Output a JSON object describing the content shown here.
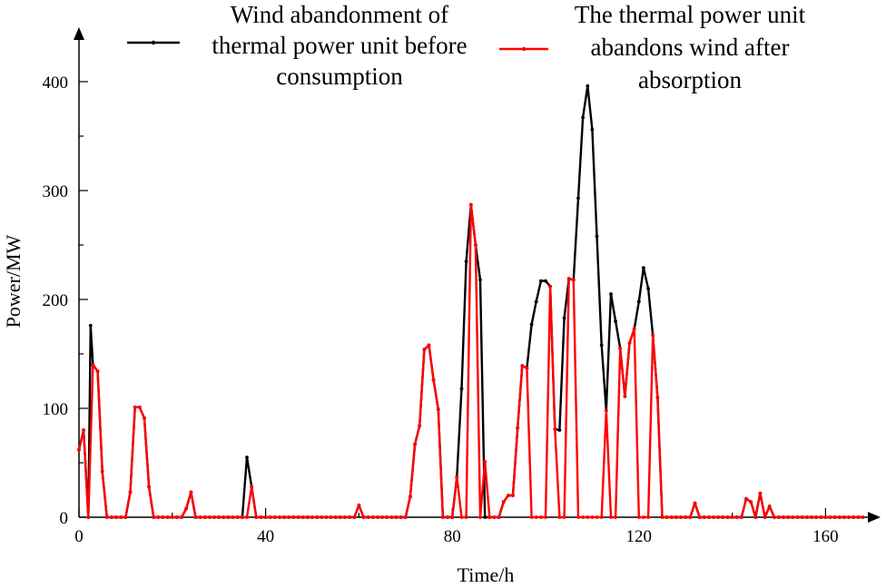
{
  "chart_data": {
    "type": "line",
    "xlabel": "Time/h",
    "ylabel": "Power/MW",
    "xlim": [
      0,
      168
    ],
    "ylim": [
      0,
      400
    ],
    "xticks": [
      0,
      40,
      80,
      120,
      160
    ],
    "yticks": [
      0,
      100,
      200,
      300,
      400
    ],
    "legend_position": "top",
    "grid": false,
    "series": [
      {
        "name": "Wind abandonment of thermal power unit before consumption",
        "legend_lines": [
          "Wind abandonment of",
          "thermal power unit before",
          "consumption"
        ],
        "color": "#000000",
        "points": [
          [
            0,
            62
          ],
          [
            1,
            80
          ],
          [
            2,
            0
          ],
          [
            2.5,
            176
          ],
          [
            3,
            140
          ],
          [
            4,
            134
          ],
          [
            5,
            42
          ],
          [
            6,
            0
          ],
          [
            7,
            0
          ],
          [
            8,
            0
          ],
          [
            9,
            0
          ],
          [
            10,
            0
          ],
          [
            11,
            23
          ],
          [
            12,
            101
          ],
          [
            13,
            101
          ],
          [
            14,
            91
          ],
          [
            15,
            28
          ],
          [
            16,
            0
          ],
          [
            17,
            0
          ],
          [
            18,
            0
          ],
          [
            19,
            0
          ],
          [
            20,
            0
          ],
          [
            21,
            0
          ],
          [
            22,
            0
          ],
          [
            23,
            8
          ],
          [
            24,
            23
          ],
          [
            25,
            0
          ],
          [
            26,
            0
          ],
          [
            27,
            0
          ],
          [
            28,
            0
          ],
          [
            29,
            0
          ],
          [
            30,
            0
          ],
          [
            31,
            0
          ],
          [
            32,
            0
          ],
          [
            33,
            0
          ],
          [
            34,
            0
          ],
          [
            35,
            0
          ],
          [
            36,
            55
          ],
          [
            37,
            28
          ],
          [
            38,
            0
          ],
          [
            39,
            0
          ],
          [
            40,
            0
          ],
          [
            41,
            0
          ],
          [
            42,
            0
          ],
          [
            43,
            0
          ],
          [
            44,
            0
          ],
          [
            45,
            0
          ],
          [
            46,
            0
          ],
          [
            47,
            0
          ],
          [
            48,
            0
          ],
          [
            49,
            0
          ],
          [
            50,
            0
          ],
          [
            51,
            0
          ],
          [
            52,
            0
          ],
          [
            53,
            0
          ],
          [
            54,
            0
          ],
          [
            55,
            0
          ],
          [
            56,
            0
          ],
          [
            57,
            0
          ],
          [
            58,
            0
          ],
          [
            59,
            0
          ],
          [
            60,
            11
          ],
          [
            61,
            0
          ],
          [
            62,
            0
          ],
          [
            63,
            0
          ],
          [
            64,
            0
          ],
          [
            65,
            0
          ],
          [
            66,
            0
          ],
          [
            67,
            0
          ],
          [
            68,
            0
          ],
          [
            69,
            0
          ],
          [
            70,
            0
          ],
          [
            71,
            19
          ],
          [
            72,
            67
          ],
          [
            73,
            84
          ],
          [
            74,
            154
          ],
          [
            75,
            158
          ],
          [
            76,
            126
          ],
          [
            77,
            99
          ],
          [
            78,
            0
          ],
          [
            79,
            0
          ],
          [
            80,
            0
          ],
          [
            81,
            37
          ],
          [
            82,
            118
          ],
          [
            83,
            235
          ],
          [
            84,
            287
          ],
          [
            85,
            250
          ],
          [
            86,
            218
          ],
          [
            87,
            0
          ],
          [
            88,
            0
          ],
          [
            89,
            0
          ],
          [
            90,
            0
          ],
          [
            91,
            14
          ],
          [
            92,
            20
          ],
          [
            93,
            20
          ],
          [
            94,
            82
          ],
          [
            95,
            139
          ],
          [
            96,
            137
          ],
          [
            97,
            177
          ],
          [
            98,
            198
          ],
          [
            99,
            217
          ],
          [
            100,
            217
          ],
          [
            101,
            212
          ],
          [
            102,
            81
          ],
          [
            103,
            80
          ],
          [
            104,
            183
          ],
          [
            105,
            219
          ],
          [
            106,
            218
          ],
          [
            107,
            293
          ],
          [
            108,
            367
          ],
          [
            109,
            396
          ],
          [
            110,
            356
          ],
          [
            111,
            258
          ],
          [
            112,
            158
          ],
          [
            113,
            98
          ],
          [
            114,
            205
          ],
          [
            115,
            180
          ],
          [
            116,
            155
          ],
          [
            117,
            111
          ],
          [
            118,
            160
          ],
          [
            119,
            173
          ],
          [
            120,
            198
          ],
          [
            121,
            229
          ],
          [
            122,
            210
          ],
          [
            123,
            167
          ],
          [
            124,
            110
          ],
          [
            125,
            0
          ],
          [
            126,
            0
          ],
          [
            127,
            0
          ],
          [
            128,
            0
          ],
          [
            129,
            0
          ],
          [
            130,
            0
          ],
          [
            131,
            0
          ],
          [
            132,
            13
          ],
          [
            133,
            0
          ],
          [
            134,
            0
          ],
          [
            135,
            0
          ],
          [
            136,
            0
          ],
          [
            137,
            0
          ],
          [
            138,
            0
          ],
          [
            139,
            0
          ],
          [
            140,
            0
          ],
          [
            141,
            0
          ],
          [
            142,
            0
          ],
          [
            143,
            17
          ],
          [
            144,
            14
          ],
          [
            145,
            0
          ],
          [
            146,
            22
          ],
          [
            147,
            0
          ],
          [
            148,
            10
          ],
          [
            149,
            0
          ],
          [
            150,
            0
          ],
          [
            151,
            0
          ],
          [
            152,
            0
          ],
          [
            153,
            0
          ],
          [
            154,
            0
          ],
          [
            155,
            0
          ],
          [
            156,
            0
          ],
          [
            157,
            0
          ],
          [
            158,
            0
          ],
          [
            159,
            0
          ],
          [
            160,
            0
          ],
          [
            161,
            0
          ],
          [
            162,
            0
          ],
          [
            163,
            0
          ],
          [
            164,
            0
          ],
          [
            165,
            0
          ],
          [
            166,
            0
          ],
          [
            167,
            0
          ],
          [
            168,
            0
          ]
        ]
      },
      {
        "name": "The thermal power unit abandons wind after absorption",
        "legend_lines": [
          "The thermal power unit",
          "abandons wind after",
          "absorption"
        ],
        "color": "#ff0000",
        "points": [
          [
            0,
            62
          ],
          [
            1,
            80
          ],
          [
            2,
            0
          ],
          [
            3,
            140
          ],
          [
            4,
            134
          ],
          [
            5,
            42
          ],
          [
            6,
            0
          ],
          [
            7,
            0
          ],
          [
            8,
            0
          ],
          [
            9,
            0
          ],
          [
            10,
            0
          ],
          [
            11,
            23
          ],
          [
            12,
            101
          ],
          [
            13,
            101
          ],
          [
            14,
            91
          ],
          [
            15,
            28
          ],
          [
            16,
            0
          ],
          [
            17,
            0
          ],
          [
            18,
            0
          ],
          [
            19,
            0
          ],
          [
            20,
            0
          ],
          [
            21,
            0
          ],
          [
            22,
            0
          ],
          [
            23,
            8
          ],
          [
            24,
            23
          ],
          [
            25,
            0
          ],
          [
            26,
            0
          ],
          [
            27,
            0
          ],
          [
            28,
            0
          ],
          [
            29,
            0
          ],
          [
            30,
            0
          ],
          [
            31,
            0
          ],
          [
            32,
            0
          ],
          [
            33,
            0
          ],
          [
            34,
            0
          ],
          [
            35,
            0
          ],
          [
            36,
            0
          ],
          [
            37,
            28
          ],
          [
            38,
            0
          ],
          [
            39,
            0
          ],
          [
            40,
            0
          ],
          [
            41,
            0
          ],
          [
            42,
            0
          ],
          [
            43,
            0
          ],
          [
            44,
            0
          ],
          [
            45,
            0
          ],
          [
            46,
            0
          ],
          [
            47,
            0
          ],
          [
            48,
            0
          ],
          [
            49,
            0
          ],
          [
            50,
            0
          ],
          [
            51,
            0
          ],
          [
            52,
            0
          ],
          [
            53,
            0
          ],
          [
            54,
            0
          ],
          [
            55,
            0
          ],
          [
            56,
            0
          ],
          [
            57,
            0
          ],
          [
            58,
            0
          ],
          [
            59,
            0
          ],
          [
            60,
            11
          ],
          [
            61,
            0
          ],
          [
            62,
            0
          ],
          [
            63,
            0
          ],
          [
            64,
            0
          ],
          [
            65,
            0
          ],
          [
            66,
            0
          ],
          [
            67,
            0
          ],
          [
            68,
            0
          ],
          [
            69,
            0
          ],
          [
            70,
            0
          ],
          [
            71,
            19
          ],
          [
            72,
            67
          ],
          [
            73,
            84
          ],
          [
            74,
            154
          ],
          [
            75,
            158
          ],
          [
            76,
            126
          ],
          [
            77,
            99
          ],
          [
            78,
            0
          ],
          [
            79,
            0
          ],
          [
            80,
            0
          ],
          [
            81,
            37
          ],
          [
            82,
            0
          ],
          [
            83,
            0
          ],
          [
            84,
            287
          ],
          [
            85,
            250
          ],
          [
            86,
            0
          ],
          [
            87,
            51
          ],
          [
            88,
            0
          ],
          [
            89,
            0
          ],
          [
            90,
            0
          ],
          [
            91,
            14
          ],
          [
            92,
            20
          ],
          [
            93,
            20
          ],
          [
            94,
            82
          ],
          [
            95,
            139
          ],
          [
            96,
            137
          ],
          [
            97,
            0
          ],
          [
            98,
            0
          ],
          [
            99,
            0
          ],
          [
            100,
            0
          ],
          [
            101,
            212
          ],
          [
            102,
            81
          ],
          [
            103,
            0
          ],
          [
            104,
            0
          ],
          [
            105,
            219
          ],
          [
            106,
            218
          ],
          [
            107,
            0
          ],
          [
            108,
            0
          ],
          [
            109,
            0
          ],
          [
            110,
            0
          ],
          [
            111,
            0
          ],
          [
            112,
            0
          ],
          [
            113,
            98
          ],
          [
            114,
            0
          ],
          [
            115,
            0
          ],
          [
            116,
            155
          ],
          [
            117,
            111
          ],
          [
            118,
            160
          ],
          [
            119,
            173
          ],
          [
            120,
            0
          ],
          [
            121,
            0
          ],
          [
            122,
            0
          ],
          [
            123,
            167
          ],
          [
            124,
            110
          ],
          [
            125,
            0
          ],
          [
            126,
            0
          ],
          [
            127,
            0
          ],
          [
            128,
            0
          ],
          [
            129,
            0
          ],
          [
            130,
            0
          ],
          [
            131,
            0
          ],
          [
            132,
            13
          ],
          [
            133,
            0
          ],
          [
            134,
            0
          ],
          [
            135,
            0
          ],
          [
            136,
            0
          ],
          [
            137,
            0
          ],
          [
            138,
            0
          ],
          [
            139,
            0
          ],
          [
            140,
            0
          ],
          [
            141,
            0
          ],
          [
            142,
            0
          ],
          [
            143,
            17
          ],
          [
            144,
            14
          ],
          [
            145,
            0
          ],
          [
            146,
            22
          ],
          [
            147,
            0
          ],
          [
            148,
            10
          ],
          [
            149,
            0
          ],
          [
            150,
            0
          ],
          [
            151,
            0
          ],
          [
            152,
            0
          ],
          [
            153,
            0
          ],
          [
            154,
            0
          ],
          [
            155,
            0
          ],
          [
            156,
            0
          ],
          [
            157,
            0
          ],
          [
            158,
            0
          ],
          [
            159,
            0
          ],
          [
            160,
            0
          ],
          [
            161,
            0
          ],
          [
            162,
            0
          ],
          [
            163,
            0
          ],
          [
            164,
            0
          ],
          [
            165,
            0
          ],
          [
            166,
            0
          ],
          [
            167,
            0
          ],
          [
            168,
            0
          ]
        ]
      }
    ]
  }
}
